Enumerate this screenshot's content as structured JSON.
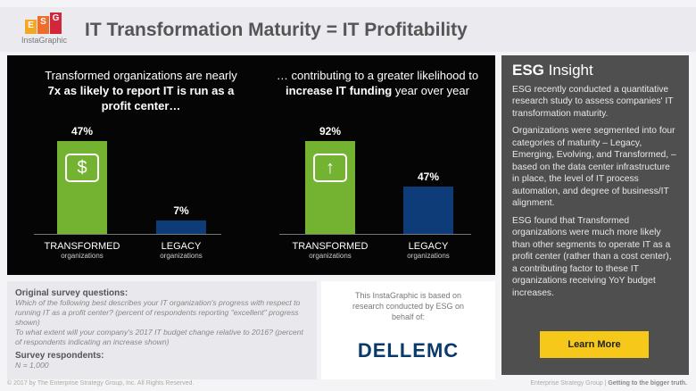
{
  "header": {
    "logo_letters": [
      "E",
      "S",
      "G"
    ],
    "logo_sub": "InstaGraphic",
    "title": "IT Transformation Maturity = IT Profitability"
  },
  "charts": [
    {
      "caption_pre": "Transformed organizations are nearly ",
      "caption_bold": "7x as likely to report IT is run as a profit center…",
      "bars": [
        {
          "value": 47,
          "label": "47%",
          "name": "TRANSFORMED",
          "sub": "organizations",
          "color": "#74b332"
        },
        {
          "value": 7,
          "label": "7%",
          "name": "LEGACY",
          "sub": "organizations",
          "color": "#0d3c78"
        }
      ],
      "icon": "money-bag-icon"
    },
    {
      "caption_pre": "… contributing to a greater likelihood to ",
      "caption_bold": "increase IT funding",
      "caption_post": " year over year",
      "bars": [
        {
          "value": 92,
          "label": "92%",
          "name": "TRANSFORMED",
          "sub": "organizations",
          "color": "#74b332"
        },
        {
          "value": 47,
          "label": "47%",
          "name": "LEGACY",
          "sub": "organizations",
          "color": "#0d3c78"
        }
      ],
      "icon": "arrow-up-icon"
    }
  ],
  "insight": {
    "title_bold": "ESG",
    "title_rest": " Insight",
    "p1": "ESG recently conducted a quantitative research study to assess companies' IT transformation maturity.",
    "p2": "Organizations were segmented into four categories of maturity – Legacy, Emerging, Evolving, and Transformed, – based on the data center infrastructure in place, the level of IT process automation, and degree of business/IT alignment.",
    "p3": "ESG found that Transformed organizations were much more likely than other segments to operate IT as a profit center (rather than a cost center), a contributing factor to these IT organizations receiving YoY budget increases.",
    "button": "Learn More"
  },
  "survey": {
    "title": "Original survey questions:",
    "q1": "Which of the following best describes your IT organization's progress with respect to running IT as a profit center? (percent of respondents reporting \"excellent\" progress shown)",
    "q2": "To what extent will your company's 2017 IT budget change relative to 2016? (percent of respondents indicating an increase shown)",
    "resp_title": "Survey respondents:",
    "n": "N = 1,000"
  },
  "sponsor": {
    "text": "This InstaGraphic is based on research conducted by ESG on behalf of:",
    "logo": "DELLEMC"
  },
  "footer": {
    "left": "© 2017 by The Enterprise Strategy Group, Inc. All Rights Reserved.",
    "right_light": "Enterprise Strategy Group | ",
    "right_bold": "Getting to the bigger truth."
  }
}
